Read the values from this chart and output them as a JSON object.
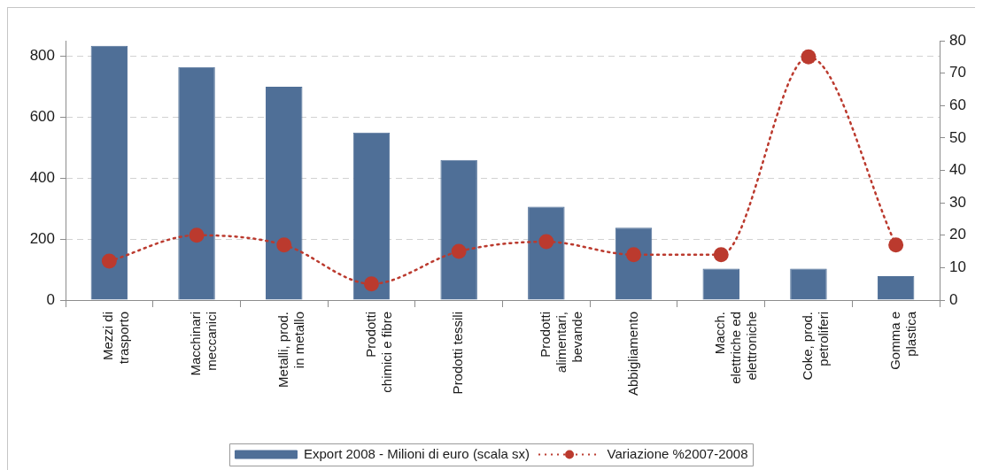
{
  "chart_data": {
    "type": "bar",
    "categories": [
      "Mezzi di trasporto",
      "Macchinari meccanici",
      "Metalli, prod. in metallo",
      "Prodotti chimici e fibre",
      "Prodotti tessili",
      "Prodotti alimentari, bevande",
      "Abbigliamento",
      "Macch. elettriche ed elettroniche",
      "Coke, prod. petroliferi",
      "Gomma e plastica"
    ],
    "series": [
      {
        "name": "Export 2008 - Milioni di euro (scala sx)",
        "color": "#4f6f97",
        "values": [
          833,
          764,
          699,
          549,
          459,
          306,
          237,
          103,
          103,
          78
        ]
      },
      {
        "name": "Variazione %2007-2008",
        "type": "line",
        "axis": "y2",
        "color": "#bb3a2e",
        "marker": "circle",
        "line_style": "dotted",
        "values": [
          12,
          20,
          17,
          5,
          15,
          18,
          14,
          14,
          75,
          17
        ]
      }
    ],
    "ylim": [
      0,
      850
    ],
    "yticks": [
      0,
      200,
      400,
      600,
      800
    ],
    "y2lim": [
      0,
      80
    ],
    "y2ticks": [
      0,
      10,
      20,
      30,
      40,
      50,
      60,
      70,
      80
    ],
    "grid": "y",
    "legend": "bottom"
  }
}
